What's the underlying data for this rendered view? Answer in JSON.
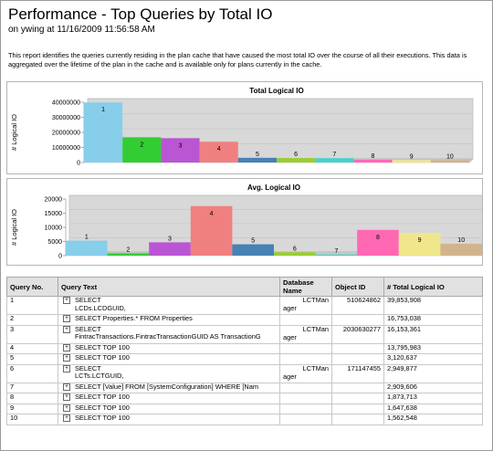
{
  "report": {
    "title": "Performance - Top Queries by Total IO",
    "subtitle": "on ywing at 11/16/2009 11:56:58 AM",
    "description": "This report identifies the queries currently residing in the plan cache that have caused the most total IO over the course of all their executions.  This data is aggregated over the lifetime of the plan in the cache and is available only for plans currently in the cache."
  },
  "chart_data": [
    {
      "type": "bar",
      "title": "Total Logical IO",
      "ylabel": "# Logical IO",
      "ylim": [
        0,
        40000000
      ],
      "yticks": [
        "0",
        "10000000",
        "20000000",
        "30000000",
        "40000000"
      ],
      "ytick_values": [
        0,
        10000000,
        20000000,
        30000000,
        40000000
      ],
      "categories": [
        "1",
        "2",
        "3",
        "4",
        "5",
        "6",
        "7",
        "8",
        "9",
        "10"
      ],
      "values": [
        39853908,
        16753038,
        16153361,
        13795983,
        3120637,
        2949877,
        2909606,
        1873713,
        1647638,
        1562548
      ],
      "colors": [
        "#87ceeb",
        "#32cd32",
        "#ba55d3",
        "#f08080",
        "#4682b4",
        "#9acd32",
        "#48d1cc",
        "#ff69b4",
        "#f0e68c",
        "#d2b48c"
      ]
    },
    {
      "type": "bar",
      "title": "Avg. Logical IO",
      "ylabel": "# Logical IO",
      "ylim": [
        0,
        20000
      ],
      "yticks": [
        "0",
        "5000",
        "10000",
        "15000",
        "20000"
      ],
      "ytick_values": [
        0,
        5000,
        10000,
        15000,
        20000
      ],
      "categories": [
        "1",
        "2",
        "3",
        "4",
        "5",
        "6",
        "7",
        "8",
        "9",
        "10"
      ],
      "values": [
        5300,
        800,
        4700,
        17500,
        4000,
        1200,
        400,
        9100,
        8000,
        4200
      ],
      "colors": [
        "#87ceeb",
        "#32cd32",
        "#ba55d3",
        "#f08080",
        "#4682b4",
        "#9acd32",
        "#48d1cc",
        "#ff69b4",
        "#f0e68c",
        "#d2b48c"
      ]
    }
  ],
  "table": {
    "headers": {
      "query_no": "Query No.",
      "query_text": "Query Text",
      "db_line1": "Database",
      "db_line2": "Name",
      "object_id": "Object ID",
      "total_io": "# Total Logical IO"
    },
    "expander": "+",
    "rows": [
      {
        "no": "1",
        "q1": "SELECT",
        "q2": "LCDs.LCDGUID,",
        "db1": "LCTMan",
        "db2": "ager",
        "obj": "510624862",
        "io": "39,853,908"
      },
      {
        "no": "2",
        "q1": "SELECT Properties.* FROM Properties",
        "q2": "",
        "db1": "",
        "db2": "",
        "obj": "",
        "io": "16,753,038"
      },
      {
        "no": "3",
        "q1": "SELECT",
        "q2": "FintracTransactions.FintracTransactionGUID AS TransactionG",
        "db1": "LCTMan",
        "db2": "ager",
        "obj": "2030630277",
        "io": "16,153,361"
      },
      {
        "no": "4",
        "q1": "SELECT TOP 100",
        "q2": "",
        "db1": "",
        "db2": "",
        "obj": "",
        "io": "13,795,983"
      },
      {
        "no": "5",
        "q1": "SELECT TOP 100",
        "q2": "",
        "db1": "",
        "db2": "",
        "obj": "",
        "io": "3,120,637"
      },
      {
        "no": "6",
        "q1": "SELECT",
        "q2": "LCTs.LCTGUID,",
        "db1": "LCTMan",
        "db2": "ager",
        "obj": "171147455",
        "io": "2,949,877"
      },
      {
        "no": "7",
        "q1": "SELECT [Value] FROM [SystemConfiguration] WHERE [Nam",
        "q2": "",
        "db1": "",
        "db2": "",
        "obj": "",
        "io": "2,909,606"
      },
      {
        "no": "8",
        "q1": "SELECT TOP 100",
        "q2": "",
        "db1": "",
        "db2": "",
        "obj": "",
        "io": "1,873,713"
      },
      {
        "no": "9",
        "q1": "SELECT TOP 100",
        "q2": "",
        "db1": "",
        "db2": "",
        "obj": "",
        "io": "1,647,638"
      },
      {
        "no": "10",
        "q1": "SELECT TOP 100",
        "q2": "",
        "db1": "",
        "db2": "",
        "obj": "",
        "io": "1,562,548"
      }
    ]
  }
}
